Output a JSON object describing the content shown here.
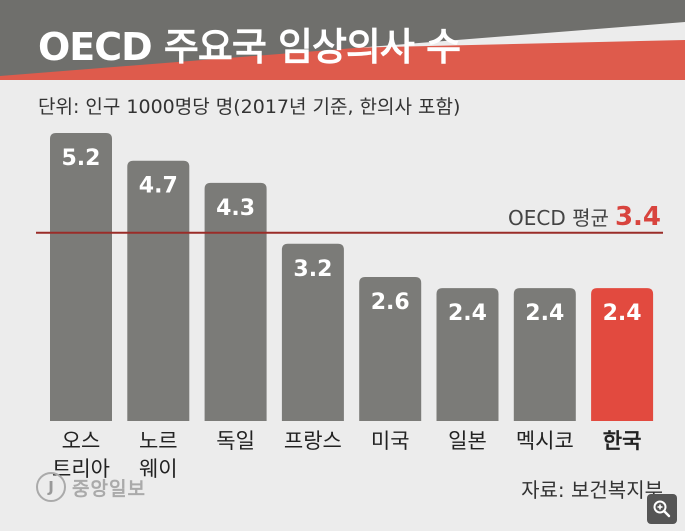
{
  "header": {
    "title": "OECD 주요국 임상의사 수",
    "unit_note": "단위: 인구 1000명당 명(2017년 기준, 한의사 포함)"
  },
  "chart_data": {
    "type": "bar",
    "categories": [
      "오스\n트리아",
      "노르\n웨이",
      "독일",
      "프랑스",
      "미국",
      "일본",
      "멕시코",
      "한국"
    ],
    "values": [
      5.2,
      4.7,
      4.3,
      3.2,
      2.6,
      2.4,
      2.4,
      2.4
    ],
    "highlight": "한국",
    "reference_line": {
      "label": "OECD 평균",
      "value": 3.4
    },
    "title": "OECD 주요국 임상의사 수",
    "ylim": [
      0,
      5.2
    ],
    "grid": false,
    "colors": {
      "bar": "#7b7b78",
      "highlight": "#e24a3f",
      "reference": "#9a2c28",
      "label_text": "#ffffff"
    }
  },
  "footer": {
    "logo_mark": "J",
    "logo_text": "중앙일보",
    "source": "자료: 보건복지부"
  },
  "colors": {
    "banner_dark": "#6f6f6c",
    "banner_red": "#de5b4c",
    "background": "#ececec"
  },
  "icons": {
    "zoom": "magnifier-icon"
  }
}
